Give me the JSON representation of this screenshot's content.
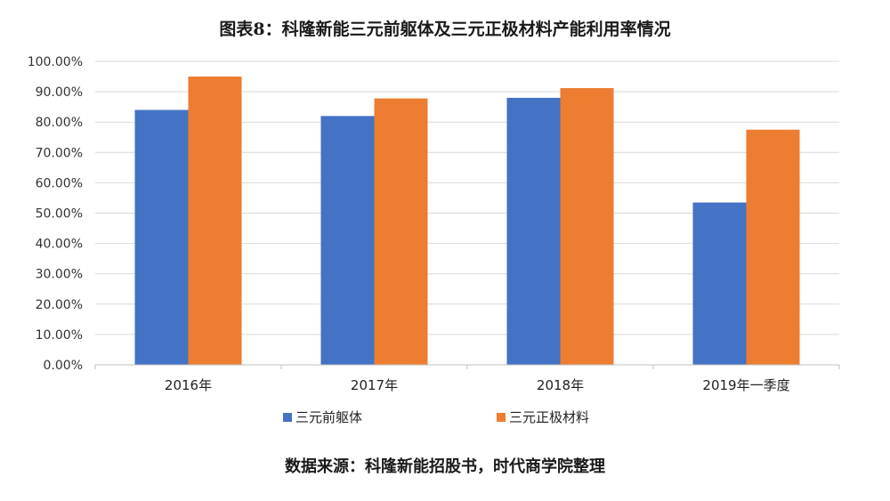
{
  "title": "图表8：科隆新能三元前躯体及三元正极材料产能利用率情况",
  "source": "数据来源：科隆新能招股书，时代商学院整理",
  "chart_data": {
    "type": "bar",
    "categories": [
      "2016年",
      "2017年",
      "2018年",
      "2019年一季度"
    ],
    "series": [
      {
        "name": "三元前躯体",
        "color": "#4472C4",
        "values": [
          84.0,
          82.0,
          88.0,
          53.5
        ]
      },
      {
        "name": "三元正极材料",
        "color": "#ED7D31",
        "values": [
          95.0,
          87.8,
          91.2,
          77.5
        ]
      }
    ],
    "ylim": [
      0,
      100
    ],
    "yticks": [
      "0.00%",
      "10.00%",
      "20.00%",
      "30.00%",
      "40.00%",
      "50.00%",
      "60.00%",
      "70.00%",
      "80.00%",
      "90.00%",
      "100.00%"
    ],
    "grid": true,
    "legend": "bottom"
  }
}
